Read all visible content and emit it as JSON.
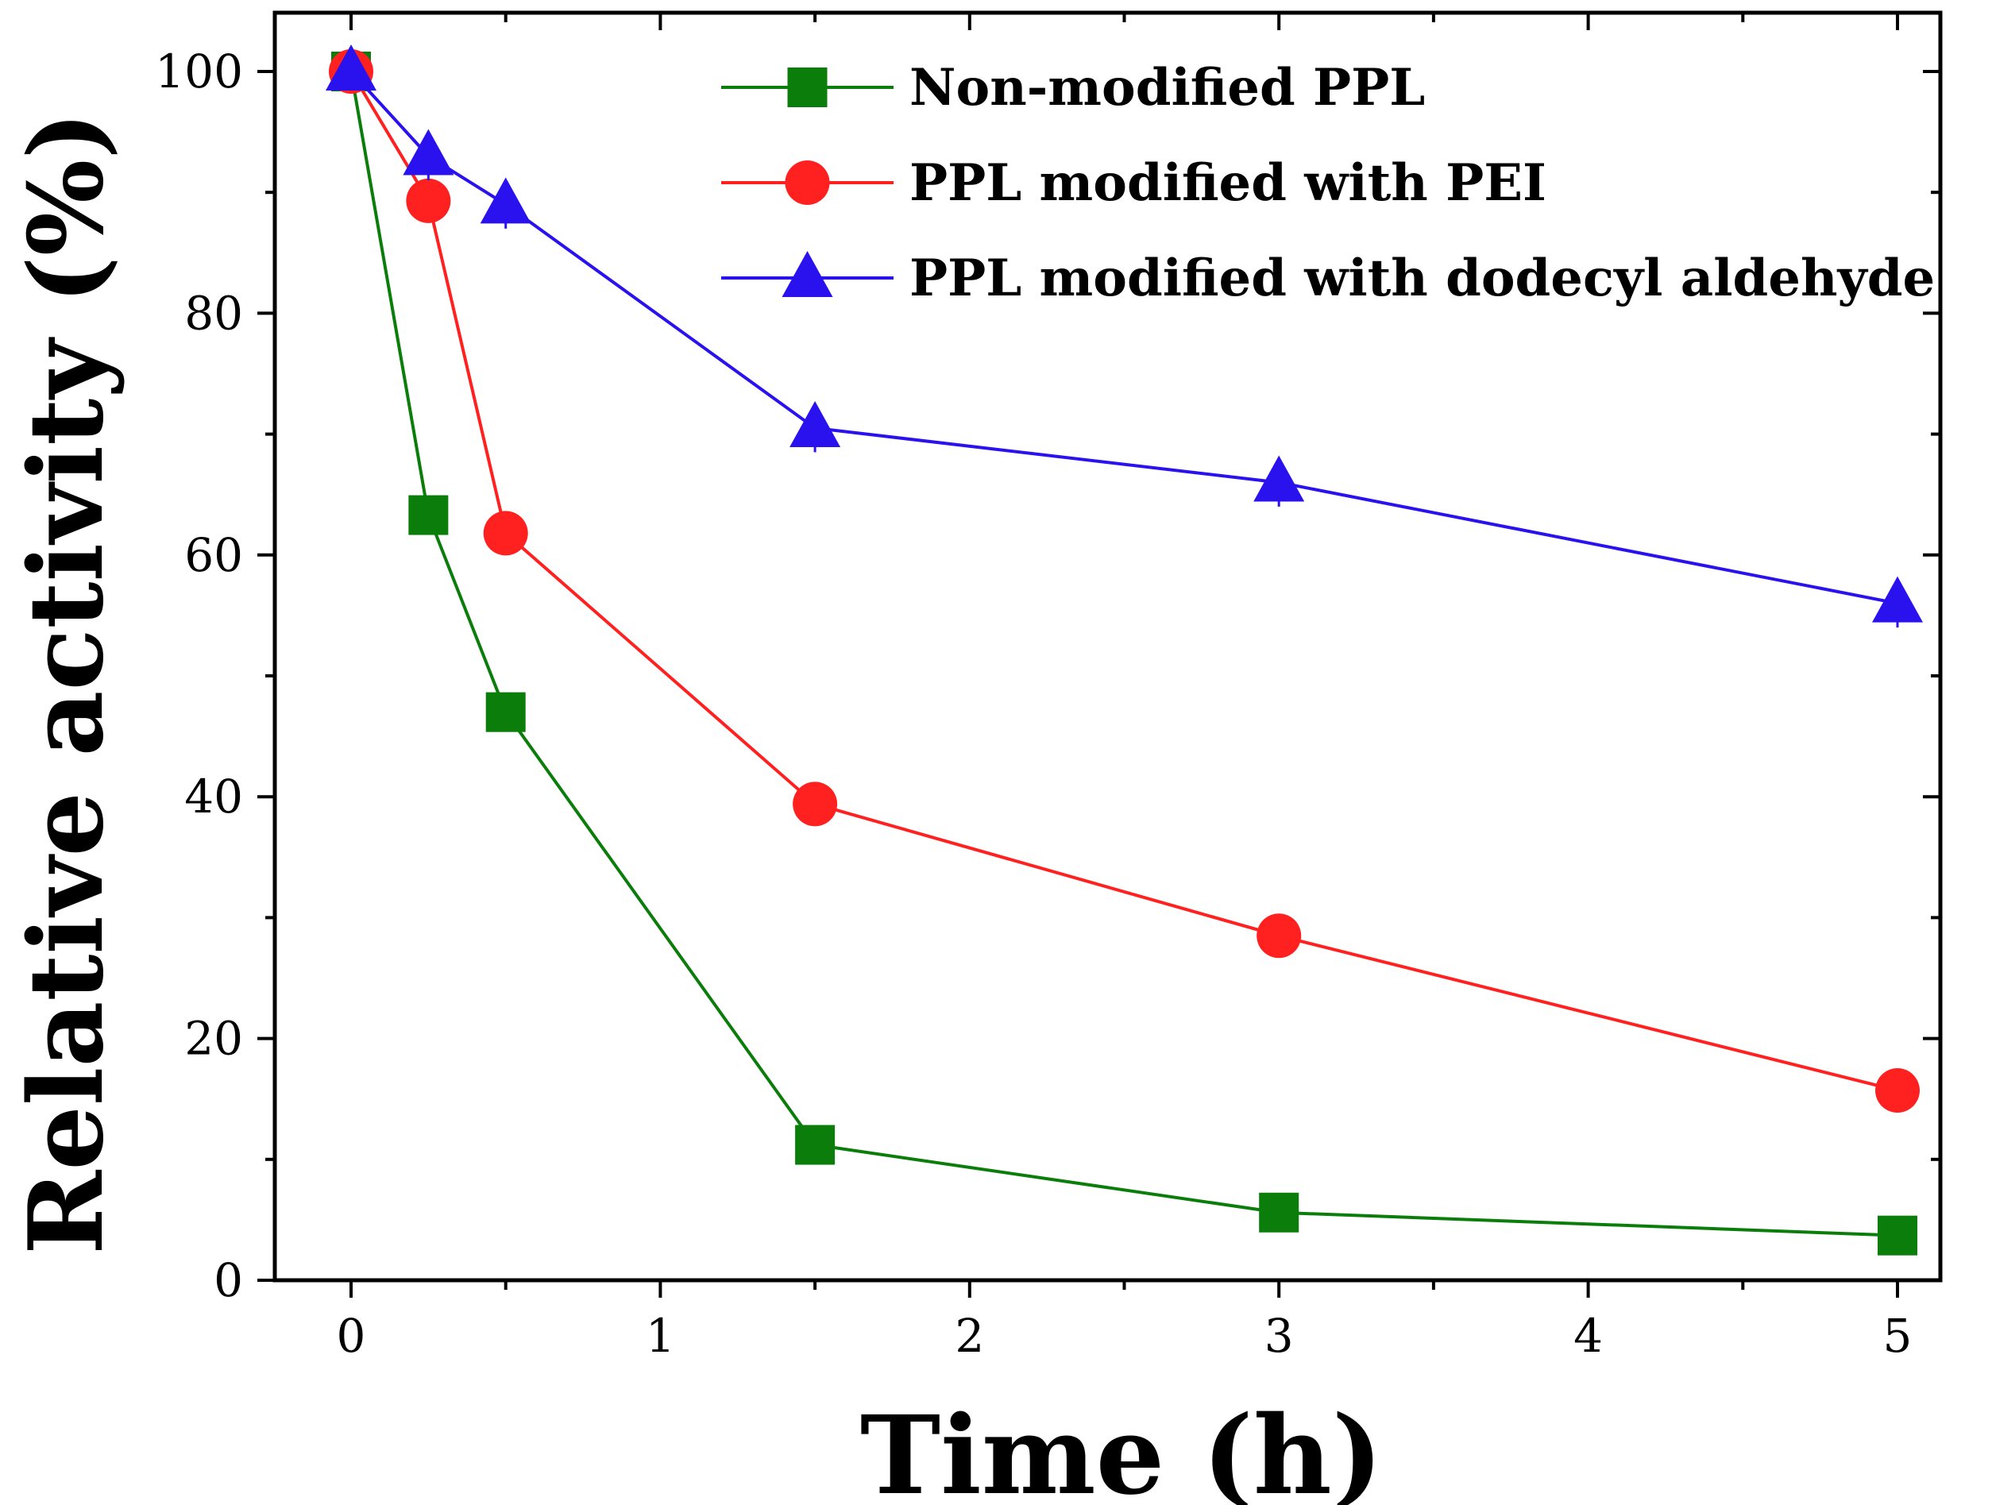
{
  "chart_data": {
    "type": "line",
    "title": "",
    "xlabel": "Time (h)",
    "ylabel": "Relative activity (%)",
    "xlim": [
      -0.25,
      5.25
    ],
    "ylim": [
      0,
      105
    ],
    "xticks": [
      0,
      1,
      2,
      3,
      4,
      5
    ],
    "xtick_labels": [
      "0",
      "1",
      "2",
      "3",
      "4",
      "5"
    ],
    "yticks": [
      0,
      20,
      40,
      60,
      80,
      100
    ],
    "ytick_labels": [
      "0",
      "20",
      "40",
      "60",
      "80",
      "100"
    ],
    "grid": false,
    "legend_position": "top-right",
    "series": [
      {
        "name": "Non-modified PPL",
        "marker": "square",
        "color": "#0a7d0a",
        "x": [
          0,
          0.25,
          0.5,
          1.5,
          3,
          5
        ],
        "y": [
          100,
          63.3,
          47.0,
          11.2,
          5.6,
          3.7
        ],
        "error": [
          0,
          0,
          0,
          0,
          0,
          0
        ]
      },
      {
        "name": "PPL modified with PEI",
        "marker": "circle",
        "color": "#ff2020",
        "x": [
          0,
          0.25,
          0.5,
          1.5,
          3,
          5
        ],
        "y": [
          100,
          89.3,
          61.8,
          39.4,
          28.5,
          15.7
        ],
        "error": [
          0,
          0,
          0,
          0,
          0,
          0
        ]
      },
      {
        "name": "PPL modified with dodecyl aldehyde",
        "marker": "triangle",
        "color": "#2a12ee",
        "x": [
          0,
          0.25,
          0.5,
          1.5,
          3,
          5
        ],
        "y": [
          100,
          93.0,
          89.0,
          70.5,
          66.0,
          56.0
        ],
        "error": [
          0,
          2.0,
          2.0,
          2.0,
          2.0,
          2.0
        ]
      }
    ]
  }
}
